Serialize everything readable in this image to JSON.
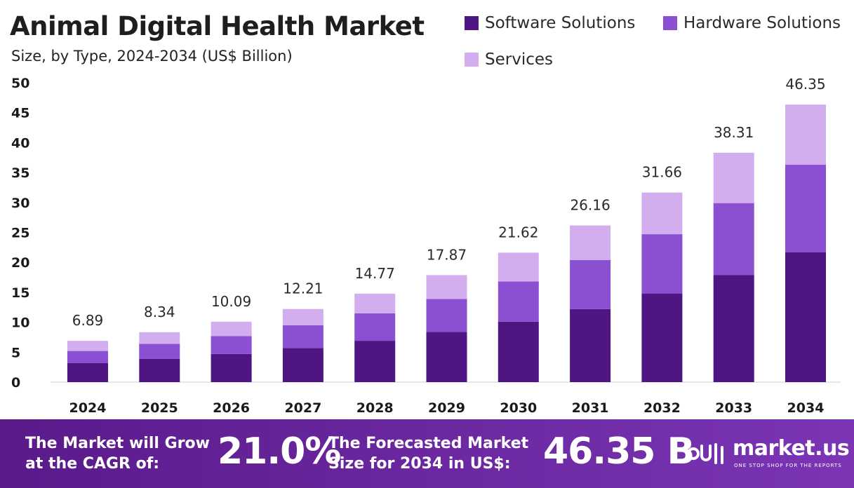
{
  "chart_data": {
    "type": "bar",
    "stacked": true,
    "title": "Animal Digital Health Market",
    "subtitle": "Size, by Type, 2024-2034 (US$ Billion)",
    "categories": [
      "2024",
      "2025",
      "2026",
      "2027",
      "2028",
      "2029",
      "2030",
      "2031",
      "2032",
      "2033",
      "2034"
    ],
    "series": [
      {
        "name": "Software Solutions",
        "color": "#4f1582",
        "values": [
          3.2,
          3.9,
          4.7,
          5.7,
          6.9,
          8.4,
          10.1,
          12.2,
          14.8,
          17.9,
          21.7
        ]
      },
      {
        "name": "Hardware Solutions",
        "color": "#8b4fd1",
        "values": [
          2.0,
          2.5,
          3.0,
          3.8,
          4.6,
          5.5,
          6.7,
          8.2,
          9.9,
          12.0,
          14.6
        ]
      },
      {
        "name": "Services",
        "color": "#d2aeee",
        "values": [
          1.69,
          1.94,
          2.39,
          2.71,
          3.27,
          3.97,
          4.82,
          5.76,
          6.96,
          8.41,
          10.05
        ]
      }
    ],
    "totals": [
      6.89,
      8.34,
      10.09,
      12.21,
      14.77,
      17.87,
      21.62,
      26.16,
      31.66,
      38.31,
      46.35
    ],
    "total_labels": [
      "6.89",
      "8.34",
      "10.09",
      "12.21",
      "14.77",
      "17.87",
      "21.62",
      "26.16",
      "31.66",
      "38.31",
      "46.35"
    ],
    "ylim": [
      0,
      50
    ],
    "yticks": [
      0,
      5,
      10,
      15,
      20,
      25,
      30,
      35,
      40,
      45,
      50
    ],
    "xlabel": "",
    "ylabel": "",
    "grid": false,
    "legend_position": "top-right"
  },
  "legend": {
    "software_label": "Software Solutions",
    "hardware_label": "Hardware Solutions",
    "services_label": "Services"
  },
  "banner": {
    "cagr_label_line1": "The Market will Grow",
    "cagr_label_line2": "at the CAGR of:",
    "cagr_value": "21.0%",
    "forecast_label_line1": "The Forecasted Market",
    "forecast_label_line2": "Size for 2034 in US$:",
    "forecast_value": "46.35 B",
    "brand_name": "market.us",
    "brand_tagline": "ONE STOP SHOP FOR THE REPORTS"
  }
}
